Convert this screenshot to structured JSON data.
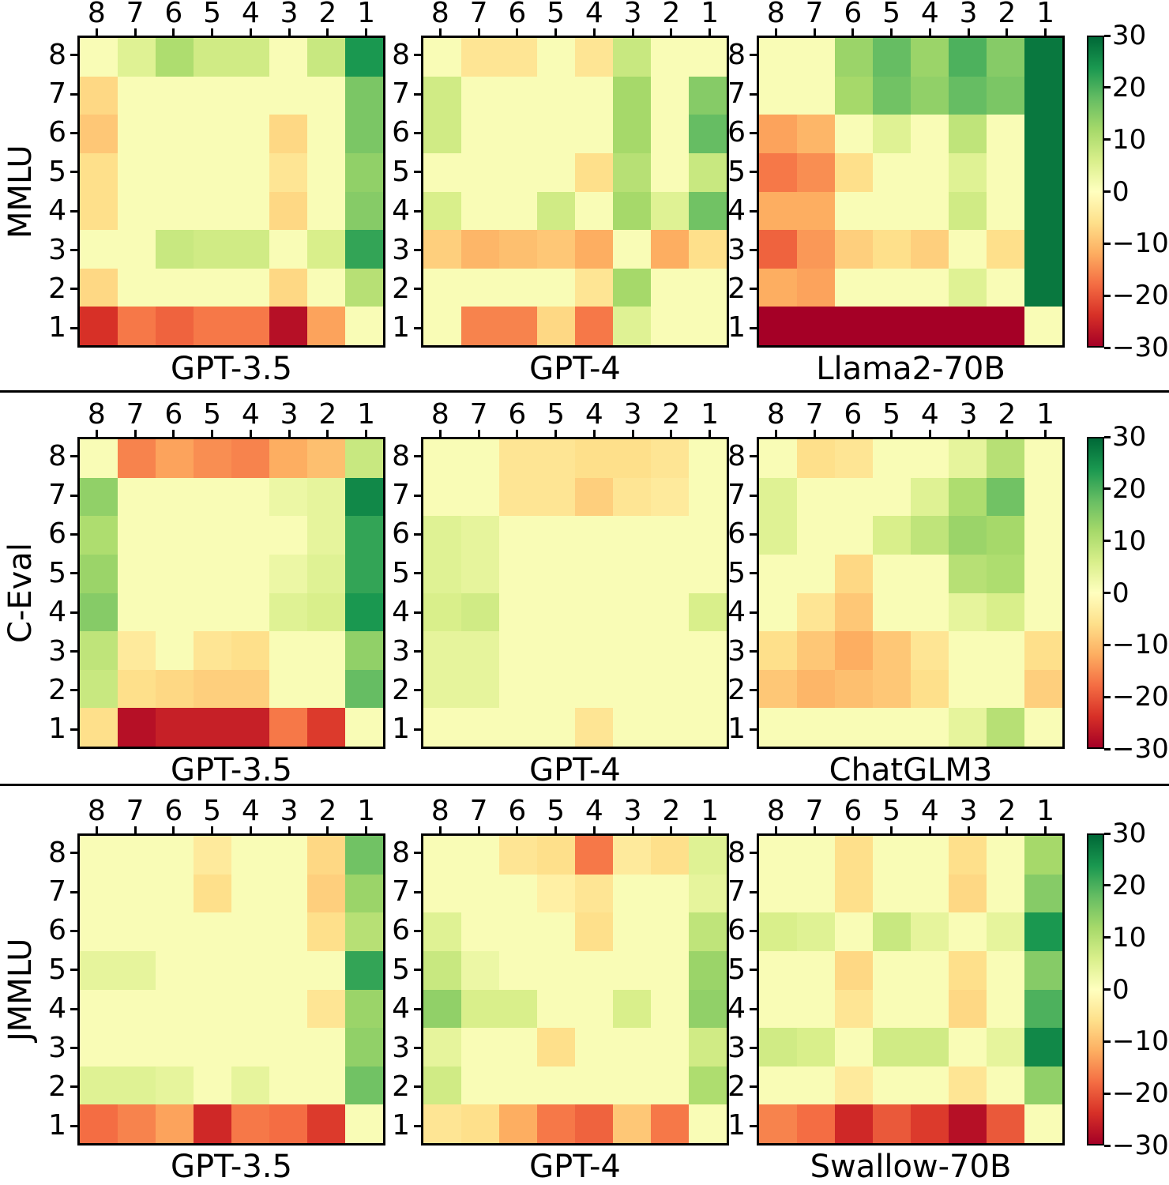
{
  "figure": {
    "background": "#ffffff",
    "type_note": "3x3 grid of 8x8 diverging heatmaps with shared colorbars per row"
  },
  "axes": {
    "x_ticklabels": [
      "8",
      "7",
      "6",
      "5",
      "4",
      "3",
      "2",
      "1"
    ],
    "y_ticklabels": [
      "8",
      "7",
      "6",
      "5",
      "4",
      "3",
      "2",
      "1"
    ]
  },
  "colorbar": {
    "tick_labels": [
      "30",
      "20",
      "10",
      "0",
      "−10",
      "−20",
      "−30"
    ],
    "vmin": -30,
    "vmax": 30,
    "colormap_name": "RdYlGn",
    "colormap_stops": [
      [
        0.0,
        "#a50026"
      ],
      [
        0.1,
        "#d73027"
      ],
      [
        0.2,
        "#f46d43"
      ],
      [
        0.3,
        "#fdae61"
      ],
      [
        0.4,
        "#fee08b"
      ],
      [
        0.5,
        "#ffffbf"
      ],
      [
        0.6,
        "#d9ef8b"
      ],
      [
        0.7,
        "#a6d96a"
      ],
      [
        0.8,
        "#66bd63"
      ],
      [
        0.9,
        "#1a9850"
      ],
      [
        1.0,
        "#006837"
      ]
    ]
  },
  "chart_data": [
    {
      "type": "heatmap",
      "row_label": "MMLU",
      "x": [
        "8",
        "7",
        "6",
        "5",
        "4",
        "3",
        "2",
        "1"
      ],
      "y": [
        "8",
        "7",
        "6",
        "5",
        "4",
        "3",
        "2",
        "1"
      ],
      "value_range": [
        -30,
        30
      ],
      "panels": [
        {
          "title": "GPT-3.5",
          "values": [
            [
              1,
              5,
              11,
              7,
              7,
              1,
              8,
              24
            ],
            [
              -7,
              1,
              1,
              1,
              1,
              1,
              1,
              16
            ],
            [
              -9,
              1,
              1,
              1,
              1,
              -7,
              1,
              16
            ],
            [
              -6,
              1,
              1,
              1,
              1,
              -5,
              1,
              14
            ],
            [
              -6,
              1,
              1,
              1,
              1,
              -7,
              1,
              15
            ],
            [
              1,
              1,
              8,
              7,
              7,
              1,
              6,
              22
            ],
            [
              -7,
              1,
              1,
              1,
              1,
              -7,
              1,
              10
            ],
            [
              -24,
              -17,
              -19,
              -17,
              -17,
              -28,
              -13,
              1
            ]
          ]
        },
        {
          "title": "GPT-4",
          "values": [
            [
              1,
              -5,
              -5,
              1,
              -5,
              8,
              1,
              1
            ],
            [
              7,
              1,
              1,
              1,
              1,
              12,
              1,
              15
            ],
            [
              7,
              1,
              1,
              1,
              1,
              12,
              1,
              18
            ],
            [
              1,
              1,
              1,
              1,
              -6,
              10,
              1,
              8
            ],
            [
              6,
              1,
              1,
              7,
              1,
              12,
              5,
              17
            ],
            [
              -8,
              -11,
              -10,
              -9,
              -12,
              1,
              -12,
              -6
            ],
            [
              1,
              1,
              1,
              1,
              -5,
              12,
              1,
              1
            ],
            [
              1,
              -16,
              -16,
              -7,
              -17,
              5,
              1,
              1
            ]
          ]
        },
        {
          "title": "Llama2-70B",
          "values": [
            [
              1,
              1,
              13,
              18,
              13,
              20,
              15,
              28
            ],
            [
              1,
              1,
              12,
              17,
              14,
              18,
              16,
              28
            ],
            [
              -13,
              -11,
              1,
              5,
              1,
              9,
              1,
              28
            ],
            [
              -17,
              -15,
              -6,
              1,
              1,
              5,
              1,
              28
            ],
            [
              -12,
              -12,
              1,
              1,
              1,
              7,
              1,
              28
            ],
            [
              -19,
              -14,
              -8,
              -6,
              -8,
              1,
              -6,
              28
            ],
            [
              -12,
              -13,
              1,
              1,
              1,
              5,
              1,
              28
            ],
            [
              -30,
              -30,
              -30,
              -30,
              -30,
              -30,
              -30,
              1
            ]
          ]
        }
      ]
    },
    {
      "type": "heatmap",
      "row_label": "C-Eval",
      "x": [
        "8",
        "7",
        "6",
        "5",
        "4",
        "3",
        "2",
        "1"
      ],
      "y": [
        "8",
        "7",
        "6",
        "5",
        "4",
        "3",
        "2",
        "1"
      ],
      "value_range": [
        -30,
        30
      ],
      "panels": [
        {
          "title": "GPT-3.5",
          "values": [
            [
              1,
              -16,
              -13,
              -15,
              -16,
              -12,
              -10,
              8
            ],
            [
              14,
              1,
              1,
              1,
              1,
              3,
              4,
              26
            ],
            [
              11,
              1,
              1,
              1,
              1,
              1,
              4,
              22
            ],
            [
              13,
              1,
              1,
              1,
              1,
              3,
              5,
              22
            ],
            [
              15,
              1,
              1,
              1,
              1,
              5,
              6,
              24
            ],
            [
              9,
              -4,
              1,
              -5,
              -6,
              1,
              1,
              14
            ],
            [
              8,
              -6,
              -7,
              -8,
              -8,
              1,
              1,
              18
            ],
            [
              -6,
              -28,
              -26,
              -26,
              -26,
              -17,
              -23,
              1
            ]
          ]
        },
        {
          "title": "GPT-4",
          "values": [
            [
              1,
              1,
              -5,
              -5,
              -6,
              -6,
              -5,
              1
            ],
            [
              1,
              1,
              -5,
              -5,
              -8,
              -5,
              -4,
              1
            ],
            [
              5,
              4,
              1,
              1,
              1,
              1,
              1,
              1
            ],
            [
              5,
              4,
              1,
              1,
              1,
              1,
              1,
              1
            ],
            [
              6,
              7,
              1,
              1,
              1,
              1,
              1,
              6
            ],
            [
              4,
              4,
              1,
              1,
              1,
              1,
              1,
              1
            ],
            [
              4,
              4,
              1,
              1,
              1,
              1,
              1,
              1
            ],
            [
              1,
              1,
              1,
              1,
              -5,
              1,
              1,
              1
            ]
          ]
        },
        {
          "title": "ChatGLM3",
          "values": [
            [
              1,
              -6,
              -5,
              1,
              1,
              4,
              10,
              1
            ],
            [
              5,
              1,
              1,
              1,
              5,
              11,
              17,
              1
            ],
            [
              5,
              1,
              1,
              6,
              9,
              13,
              12,
              1
            ],
            [
              1,
              1,
              -7,
              1,
              1,
              10,
              11,
              1
            ],
            [
              1,
              -5,
              -9,
              1,
              1,
              4,
              6,
              1
            ],
            [
              -6,
              -9,
              -12,
              -9,
              -5,
              1,
              1,
              -6
            ],
            [
              -9,
              -11,
              -10,
              -9,
              -6,
              1,
              1,
              -8
            ],
            [
              1,
              1,
              1,
              1,
              1,
              4,
              10,
              1
            ]
          ]
        }
      ]
    },
    {
      "type": "heatmap",
      "row_label": "JMMLU",
      "x": [
        "8",
        "7",
        "6",
        "5",
        "4",
        "3",
        "2",
        "1"
      ],
      "y": [
        "8",
        "7",
        "6",
        "5",
        "4",
        "3",
        "2",
        "1"
      ],
      "value_range": [
        -30,
        30
      ],
      "panels": [
        {
          "title": "GPT-3.5",
          "values": [
            [
              1,
              1,
              1,
              -4,
              1,
              1,
              -7,
              17
            ],
            [
              1,
              1,
              1,
              -6,
              1,
              1,
              -8,
              13
            ],
            [
              1,
              1,
              1,
              1,
              1,
              1,
              -6,
              10
            ],
            [
              4,
              4,
              1,
              1,
              1,
              1,
              1,
              22
            ],
            [
              1,
              1,
              1,
              1,
              1,
              1,
              -5,
              13
            ],
            [
              1,
              1,
              1,
              1,
              1,
              1,
              1,
              14
            ],
            [
              5,
              5,
              4,
              1,
              4,
              1,
              1,
              17
            ],
            [
              -18,
              -16,
              -13,
              -25,
              -17,
              -18,
              -23,
              1
            ]
          ]
        },
        {
          "title": "GPT-4",
          "values": [
            [
              1,
              1,
              -5,
              -6,
              -17,
              -4,
              -6,
              5
            ],
            [
              1,
              1,
              1,
              -3,
              -5,
              1,
              1,
              4
            ],
            [
              5,
              1,
              1,
              1,
              -6,
              1,
              1,
              9
            ],
            [
              8,
              3,
              1,
              1,
              1,
              1,
              1,
              13
            ],
            [
              14,
              6,
              6,
              1,
              1,
              6,
              1,
              14
            ],
            [
              4,
              1,
              1,
              -6,
              1,
              1,
              1,
              7
            ],
            [
              7,
              1,
              1,
              1,
              1,
              1,
              1,
              11
            ],
            [
              -5,
              -6,
              -12,
              -17,
              -19,
              -9,
              -17,
              1
            ]
          ]
        },
        {
          "title": "Swallow-70B",
          "values": [
            [
              1,
              1,
              -6,
              1,
              1,
              -6,
              1,
              12
            ],
            [
              1,
              1,
              -6,
              1,
              1,
              -7,
              1,
              15
            ],
            [
              6,
              5,
              1,
              8,
              4,
              1,
              4,
              24
            ],
            [
              1,
              1,
              -7,
              1,
              1,
              -6,
              1,
              15
            ],
            [
              1,
              1,
              -5,
              1,
              1,
              -7,
              1,
              20
            ],
            [
              7,
              6,
              1,
              7,
              7,
              1,
              4,
              26
            ],
            [
              1,
              1,
              -4,
              1,
              1,
              -5,
              1,
              14
            ],
            [
              -16,
              -18,
              -25,
              -20,
              -23,
              -28,
              -20,
              1
            ]
          ]
        }
      ]
    }
  ]
}
